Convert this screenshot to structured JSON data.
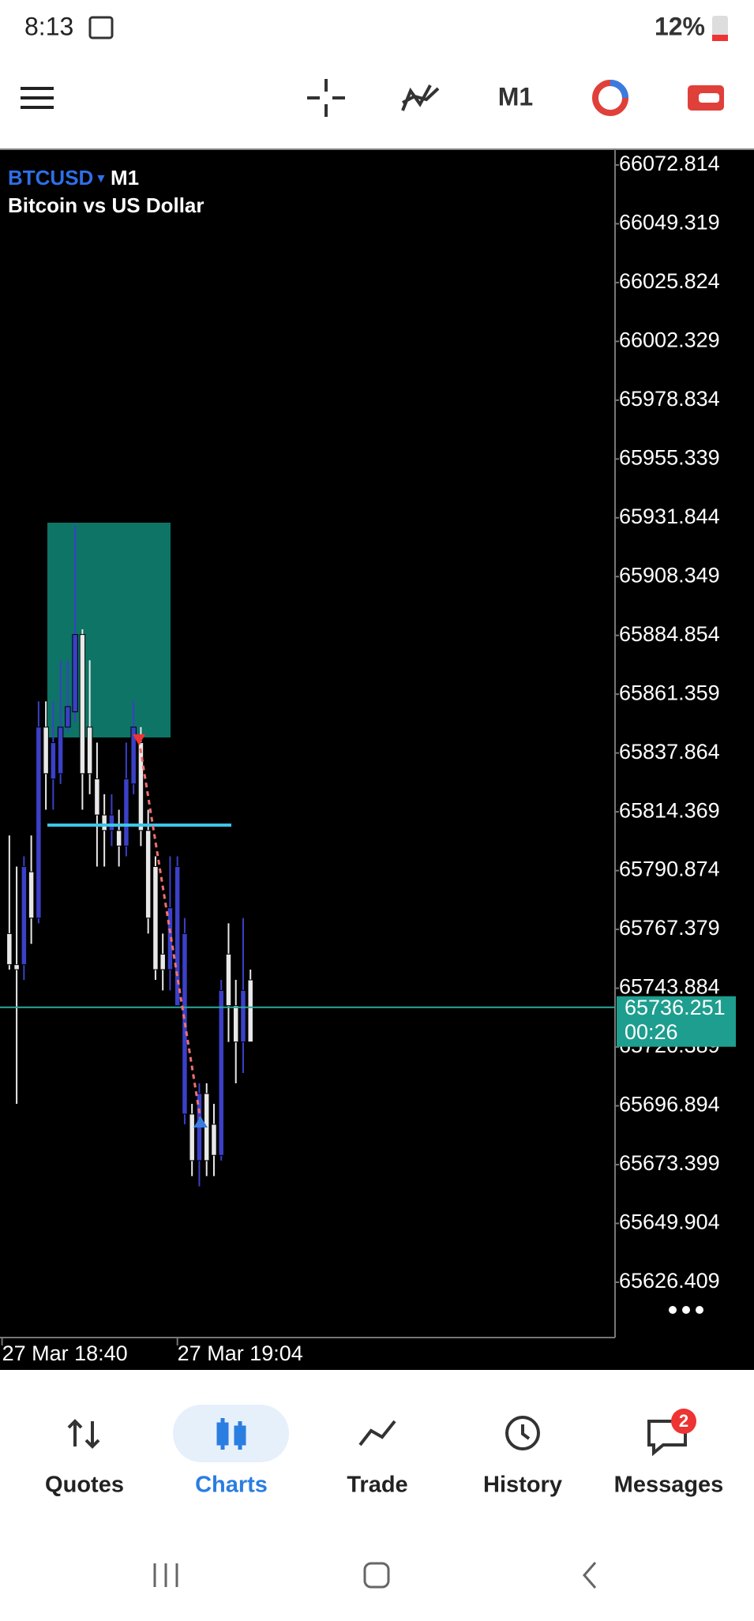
{
  "status_bar": {
    "time": "8:13",
    "battery": "12%"
  },
  "toolbar": {
    "timeframe": "M1"
  },
  "chart_data": {
    "type": "candlestick",
    "symbol": "BTCUSD",
    "timeframe": "M1",
    "description": "Bitcoin vs US Dollar",
    "open": [
      65765.7,
      65753.3,
      65753.3,
      65790.4,
      65771.9,
      65848.2,
      65827.5,
      65829.6,
      65848.2,
      65854.3,
      65885.2,
      65848.2,
      65827.5,
      65813.1,
      65806.9,
      65806.9,
      65800.7,
      65825.5,
      65842.0,
      65806.9,
      65792.5,
      65757.5,
      65751.3,
      65736.9,
      65693.6,
      65693.6,
      65675.0,
      65701.8,
      65689.5,
      65677.1,
      65757.5,
      65736.9,
      65722.4,
      65747.2
    ],
    "high": [
      65804.9,
      65792.5,
      65796.6,
      65804.9,
      65858.5,
      65858.5,
      65858.5,
      65874.9,
      65874.9,
      65928.5,
      65887.3,
      65874.9,
      65842.0,
      65821.4,
      65821.4,
      65815.2,
      65842.0,
      65858.5,
      65848.2,
      65815.2,
      65796.6,
      65765.7,
      65796.6,
      65796.6,
      65771.9,
      65697.7,
      65705.9,
      65705.9,
      65697.7,
      65747.2,
      65769.8,
      65747.2,
      65771.9,
      65751.3
    ],
    "low": [
      65751.3,
      65697.7,
      65747.2,
      65761.6,
      65769.8,
      65815.2,
      65815.2,
      65825.5,
      65846.1,
      65850.2,
      65815.2,
      65821.4,
      65792.5,
      65792.5,
      65800.7,
      65792.5,
      65796.6,
      65821.4,
      65800.7,
      65765.7,
      65747.2,
      65743.0,
      65743.0,
      65736.9,
      65689.5,
      65668.8,
      65664.7,
      65668.8,
      65668.8,
      65675.0,
      65722.4,
      65705.9,
      65710.0,
      65722.4
    ],
    "close": [
      65753.3,
      65751.3,
      65792.5,
      65771.9,
      65848.2,
      65829.6,
      65842.0,
      65848.2,
      65856.4,
      65885.2,
      65829.6,
      65829.6,
      65813.1,
      65806.9,
      65813.1,
      65800.7,
      65827.5,
      65848.2,
      65806.9,
      65771.9,
      65751.3,
      65751.3,
      65776.0,
      65792.5,
      65765.7,
      65675.0,
      65701.8,
      65675.0,
      65677.1,
      65743.0,
      65736.9,
      65722.4,
      65743.0,
      65722.4
    ],
    "up_color": "#3b40c8",
    "down_color": "#e8e8e8",
    "ylim": [
      65604.3,
      66079.1
    ],
    "yticks": [
      66072.814,
      66049.319,
      66025.824,
      66002.329,
      65978.834,
      65955.339,
      65931.844,
      65908.349,
      65884.854,
      65861.359,
      65837.864,
      65814.369,
      65790.874,
      65767.379,
      65743.884,
      65720.389,
      65696.894,
      65673.399,
      65649.904,
      65626.409
    ],
    "xlim": [
      -1.28,
      82.9
    ],
    "xticks": [
      {
        "value": -1,
        "label": "27 Mar 18:40"
      },
      {
        "value": 23,
        "label": "27 Mar 19:04"
      }
    ],
    "current_price": 65736.251,
    "countdown": "00:26",
    "grid": false
  },
  "nav": {
    "items": [
      "Quotes",
      "Charts",
      "Trade",
      "History",
      "Messages"
    ],
    "active": "Charts",
    "messages_badge": "2"
  }
}
